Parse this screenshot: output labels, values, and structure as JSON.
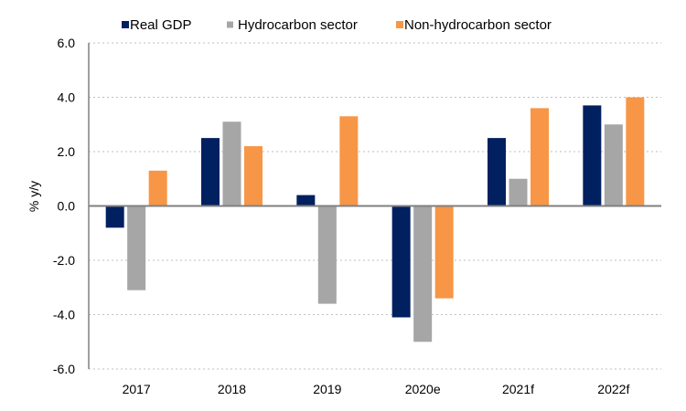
{
  "chart_data": {
    "type": "bar",
    "title": "",
    "xlabel": "",
    "ylabel": "% y/y",
    "ylim": [
      -6.0,
      6.0
    ],
    "ytick_step": 2.0,
    "ytick_labels": [
      "6.0",
      "4.0",
      "2.0",
      "0.0",
      "-2.0",
      "-4.0",
      "-6.0"
    ],
    "grid": "horizontal-dotted",
    "legend_position": "top",
    "categories": [
      "2017",
      "2018",
      "2019",
      "2020e",
      "2021f",
      "2022f"
    ],
    "series": [
      {
        "name": "Real GDP",
        "color": "#002060",
        "values": [
          -0.8,
          2.5,
          0.4,
          -4.1,
          2.5,
          3.7
        ]
      },
      {
        "name": "Hydrocarbon sector",
        "color": "#A6A6A6",
        "values": [
          -3.1,
          3.1,
          -3.6,
          -5.0,
          1.0,
          3.0
        ]
      },
      {
        "name": "Non-hydrocarbon sector",
        "color": "#F79646",
        "values": [
          1.3,
          2.2,
          3.3,
          -3.4,
          3.6,
          4.0
        ]
      }
    ]
  }
}
